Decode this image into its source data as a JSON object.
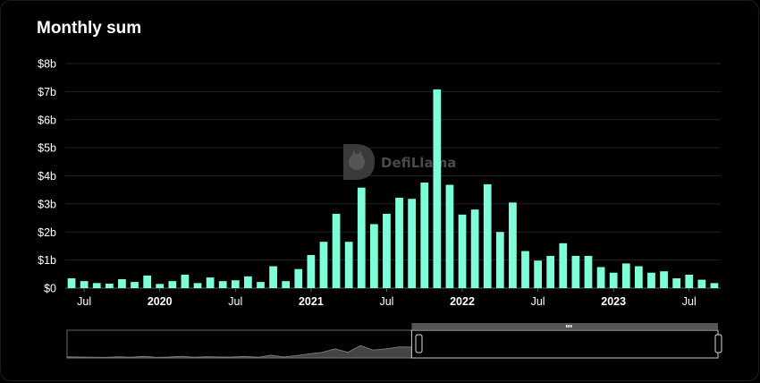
{
  "chart_data": {
    "type": "bar",
    "title": "Monthly sum",
    "xlabel": "",
    "ylabel": "",
    "ylim": [
      0,
      8
    ],
    "y_unit": "billion USD",
    "y_ticks": [
      "$0",
      "$1b",
      "$2b",
      "$3b",
      "$4b",
      "$5b",
      "$6b",
      "$7b",
      "$8b"
    ],
    "x_ticks": [
      {
        "label": "Jul",
        "month": "2019-07",
        "major": false
      },
      {
        "label": "2020",
        "month": "2020-01",
        "major": true
      },
      {
        "label": "Jul",
        "month": "2020-07",
        "major": false
      },
      {
        "label": "2021",
        "month": "2021-01",
        "major": true
      },
      {
        "label": "Jul",
        "month": "2021-07",
        "major": false
      },
      {
        "label": "2022",
        "month": "2022-01",
        "major": true
      },
      {
        "label": "Jul",
        "month": "2022-07",
        "major": false
      },
      {
        "label": "2023",
        "month": "2023-01",
        "major": true
      },
      {
        "label": "Jul",
        "month": "2023-07",
        "major": false
      }
    ],
    "grid": true,
    "legend": "none",
    "bar_color": "#7effd9",
    "categories": [
      "2019-06",
      "2019-07",
      "2019-08",
      "2019-09",
      "2019-10",
      "2019-11",
      "2019-12",
      "2020-01",
      "2020-02",
      "2020-03",
      "2020-04",
      "2020-05",
      "2020-06",
      "2020-07",
      "2020-08",
      "2020-09",
      "2020-10",
      "2020-11",
      "2020-12",
      "2021-01",
      "2021-02",
      "2021-03",
      "2021-04",
      "2021-05",
      "2021-06",
      "2021-07",
      "2021-08",
      "2021-09",
      "2021-10",
      "2021-11",
      "2021-12",
      "2022-01",
      "2022-02",
      "2022-03",
      "2022-04",
      "2022-05",
      "2022-06",
      "2022-07",
      "2022-08",
      "2022-09",
      "2022-10",
      "2022-11",
      "2022-12",
      "2023-01",
      "2023-02",
      "2023-03",
      "2023-04",
      "2023-05",
      "2023-06",
      "2023-07",
      "2023-08",
      "2023-09"
    ],
    "values": [
      0.35,
      0.25,
      0.18,
      0.16,
      0.32,
      0.22,
      0.45,
      0.15,
      0.25,
      0.48,
      0.18,
      0.38,
      0.25,
      0.28,
      0.42,
      0.22,
      0.78,
      0.25,
      0.68,
      1.18,
      1.65,
      2.65,
      1.65,
      3.58,
      2.28,
      2.65,
      3.22,
      3.18,
      3.76,
      7.08,
      3.68,
      2.62,
      2.8,
      3.7,
      2.0,
      3.05,
      1.32,
      0.98,
      1.15,
      1.6,
      1.15,
      1.15,
      0.75,
      0.55,
      0.88,
      0.78,
      0.55,
      0.6,
      0.35,
      0.48,
      0.3,
      0.18
    ]
  },
  "watermark": {
    "label": "DefiLlama",
    "icon": "llama-logo-icon"
  },
  "brush": {
    "handle_icon": "grip-icon",
    "range_start_month": "2021-09",
    "range_end_month": "2023-09"
  }
}
